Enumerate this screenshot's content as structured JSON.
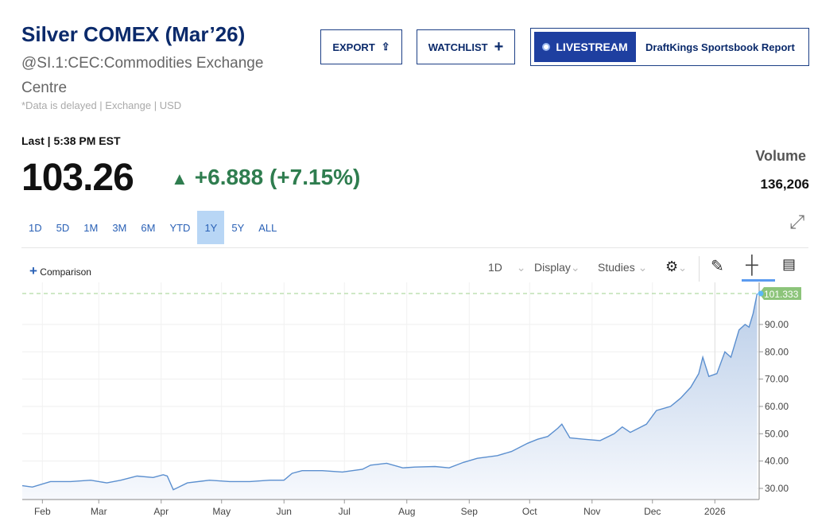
{
  "header": {
    "title": "Silver COMEX (Mar’26)",
    "subtitle": "@SI.1:CEC:Commodities Exchange Centre",
    "delay_note": "*Data is delayed | Exchange | USD"
  },
  "buttons": {
    "export": "EXPORT",
    "watchlist": "WATCHLIST",
    "livestream": "LIVESTREAM",
    "livestream_title": "DraftKings Sportsbook Report"
  },
  "quote": {
    "last_label": "Last | 5:38 PM EST",
    "price": "103.26",
    "change": "+6.888 (+7.15%)",
    "direction": "up",
    "volume_label": "Volume",
    "volume": "136,206"
  },
  "ranges": [
    {
      "label": "1D"
    },
    {
      "label": "5D"
    },
    {
      "label": "1M"
    },
    {
      "label": "3M"
    },
    {
      "label": "6M"
    },
    {
      "label": "YTD"
    },
    {
      "label": "1Y",
      "active": true
    },
    {
      "label": "5Y"
    },
    {
      "label": "ALL"
    }
  ],
  "toolbar": {
    "comparison": "Comparison",
    "interval": "1D",
    "display": "Display",
    "studies": "Studies"
  },
  "colors": {
    "line": "#5b8fcf",
    "up": "#2f7d4f",
    "last_badge": "#8cc47a",
    "brand": "#0b2a6b"
  },
  "chart_data": {
    "type": "area",
    "x_tick_labels": [
      "Feb",
      "Mar",
      "Apr",
      "May",
      "Jun",
      "Jul",
      "Aug",
      "Sep",
      "Oct",
      "Nov",
      "Dec",
      "2026"
    ],
    "y_tick_labels": [
      "30.00",
      "40.00",
      "50.00",
      "60.00",
      "70.00",
      "80.00",
      "90.00"
    ],
    "ylim": [
      26,
      103
    ],
    "xlim": [
      "2025-01-22",
      "2026-01-23"
    ],
    "last_value_label": "101.333",
    "grid": true,
    "points": [
      [
        "2025-01-22",
        31
      ],
      [
        "2025-01-27",
        30.5
      ],
      [
        "2025-02-05",
        32.5
      ],
      [
        "2025-02-15",
        32.5
      ],
      [
        "2025-02-25",
        33
      ],
      [
        "2025-03-05",
        32
      ],
      [
        "2025-03-12",
        33
      ],
      [
        "2025-03-20",
        34.5
      ],
      [
        "2025-03-28",
        34
      ],
      [
        "2025-04-02",
        35
      ],
      [
        "2025-04-04",
        34.5
      ],
      [
        "2025-04-07",
        29.5
      ],
      [
        "2025-04-14",
        32
      ],
      [
        "2025-04-25",
        33
      ],
      [
        "2025-05-05",
        32.5
      ],
      [
        "2025-05-15",
        32.5
      ],
      [
        "2025-05-25",
        33
      ],
      [
        "2025-06-01",
        33
      ],
      [
        "2025-06-05",
        35.5
      ],
      [
        "2025-06-10",
        36.5
      ],
      [
        "2025-06-20",
        36.5
      ],
      [
        "2025-06-30",
        36
      ],
      [
        "2025-07-10",
        37
      ],
      [
        "2025-07-14",
        38.5
      ],
      [
        "2025-07-22",
        39.2
      ],
      [
        "2025-07-30",
        37.5
      ],
      [
        "2025-08-05",
        37.8
      ],
      [
        "2025-08-15",
        38
      ],
      [
        "2025-08-22",
        37.5
      ],
      [
        "2025-08-29",
        39.5
      ],
      [
        "2025-09-05",
        41
      ],
      [
        "2025-09-15",
        42
      ],
      [
        "2025-09-22",
        43.5
      ],
      [
        "2025-09-30",
        46.5
      ],
      [
        "2025-10-05",
        48
      ],
      [
        "2025-10-10",
        49
      ],
      [
        "2025-10-15",
        52
      ],
      [
        "2025-10-17",
        53.5
      ],
      [
        "2025-10-21",
        48.5
      ],
      [
        "2025-10-28",
        48
      ],
      [
        "2025-11-05",
        47.5
      ],
      [
        "2025-11-12",
        50
      ],
      [
        "2025-11-16",
        52.5
      ],
      [
        "2025-11-20",
        50.5
      ],
      [
        "2025-11-28",
        53.5
      ],
      [
        "2025-12-03",
        58.5
      ],
      [
        "2025-12-10",
        60
      ],
      [
        "2025-12-15",
        63
      ],
      [
        "2025-12-20",
        67
      ],
      [
        "2025-12-24",
        72
      ],
      [
        "2025-12-26",
        78
      ],
      [
        "2025-12-29",
        71
      ],
      [
        "2026-01-02",
        72
      ],
      [
        "2026-01-06",
        80
      ],
      [
        "2026-01-09",
        78
      ],
      [
        "2026-01-13",
        88
      ],
      [
        "2026-01-16",
        90
      ],
      [
        "2026-01-18",
        89
      ],
      [
        "2026-01-20",
        94
      ],
      [
        "2026-01-22",
        101.333
      ]
    ]
  }
}
